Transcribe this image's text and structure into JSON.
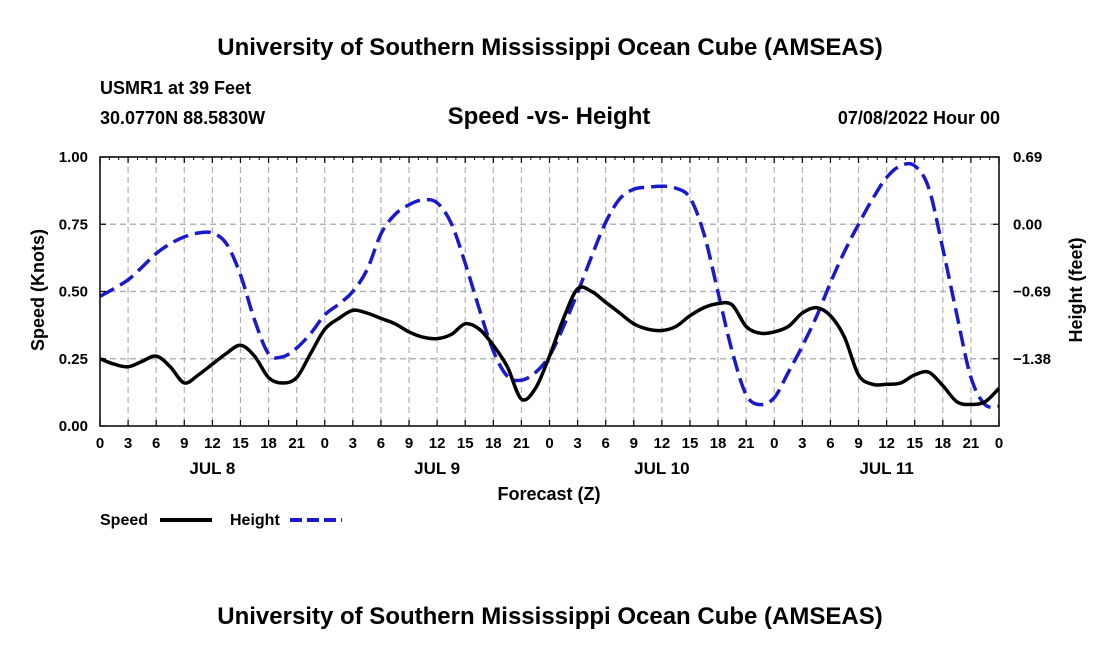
{
  "header": {
    "title": "University of Southern Mississippi Ocean Cube (AMSEAS)",
    "station": "USMR1 at 39 Feet",
    "coords": "30.0770N  88.5830W",
    "plot_title": "Speed -vs- Height",
    "datetime": "07/08/2022 Hour 00"
  },
  "footer": {
    "title": "University of Southern Mississippi Ocean Cube (AMSEAS)"
  },
  "colors": {
    "speed": "#000000",
    "height": "#1a1acc",
    "grid": "#b0b0b0"
  },
  "chart_data": {
    "type": "line",
    "title": "Speed -vs- Height",
    "xlabel": "Forecast (Z)",
    "ylabel": "Speed (Knots)",
    "y2label": "Height (feet)",
    "xlim": [
      0,
      96
    ],
    "ylim": [
      0,
      1
    ],
    "y_ticks": [
      0,
      0.25,
      0.5,
      0.75,
      1.0
    ],
    "y_tick_labels": [
      "0.00",
      "0.25",
      "0.50",
      "0.75",
      "1.00"
    ],
    "y2_ticks": [
      0.69,
      0.0,
      -0.69,
      -1.38
    ],
    "y2_tick_labels": [
      "0.69",
      "0.00",
      "−0.69",
      "−1.38"
    ],
    "y2lim": [
      -2.07,
      0.69
    ],
    "x_ticks": [
      0,
      3,
      6,
      9,
      12,
      15,
      18,
      21,
      24,
      27,
      30,
      33,
      36,
      39,
      42,
      45,
      48,
      51,
      54,
      57,
      60,
      63,
      66,
      69,
      72,
      75,
      78,
      81,
      84,
      87,
      90,
      93,
      96
    ],
    "x_tick_labels": [
      "0",
      "3",
      "6",
      "9",
      "12",
      "15",
      "18",
      "21",
      "0",
      "3",
      "6",
      "9",
      "12",
      "15",
      "18",
      "21",
      "0",
      "3",
      "6",
      "9",
      "12",
      "15",
      "18",
      "21",
      "0",
      "3",
      "6",
      "9",
      "12",
      "15",
      "18",
      "21",
      "0"
    ],
    "day_labels": [
      {
        "x": 12,
        "label": "JUL 8"
      },
      {
        "x": 36,
        "label": "JUL 9"
      },
      {
        "x": 60,
        "label": "JUL 10"
      },
      {
        "x": 84,
        "label": "JUL 11"
      }
    ],
    "grid": true,
    "legend": {
      "position": "bottom-left",
      "entries": [
        "Speed",
        "Height"
      ]
    },
    "series": [
      {
        "name": "Speed",
        "axis": "left",
        "style": "solid",
        "x": [
          0,
          1.5,
          3,
          4.5,
          6,
          7.5,
          9,
          10.5,
          12,
          13.5,
          15,
          16.5,
          18,
          19.5,
          21,
          22.5,
          24,
          25.5,
          27,
          28.5,
          30,
          31.5,
          33,
          34.5,
          36,
          37.5,
          39,
          40.5,
          42,
          43.5,
          45,
          46.5,
          48,
          49.5,
          51,
          52.5,
          54,
          55.5,
          57,
          58.5,
          60,
          61.5,
          63,
          64.5,
          66,
          67.5,
          69,
          70.5,
          72,
          73.5,
          75,
          76.5,
          78,
          79.5,
          81,
          82.5,
          84,
          85.5,
          87,
          88.5,
          90,
          91.5,
          93,
          94.5,
          96
        ],
        "values": [
          0.25,
          0.23,
          0.22,
          0.24,
          0.26,
          0.22,
          0.16,
          0.19,
          0.23,
          0.27,
          0.3,
          0.26,
          0.18,
          0.16,
          0.18,
          0.27,
          0.36,
          0.4,
          0.43,
          0.42,
          0.4,
          0.38,
          0.35,
          0.33,
          0.325,
          0.34,
          0.38,
          0.36,
          0.3,
          0.22,
          0.1,
          0.14,
          0.26,
          0.4,
          0.51,
          0.5,
          0.46,
          0.42,
          0.38,
          0.36,
          0.355,
          0.37,
          0.41,
          0.44,
          0.455,
          0.45,
          0.37,
          0.345,
          0.35,
          0.37,
          0.42,
          0.44,
          0.41,
          0.33,
          0.19,
          0.155,
          0.155,
          0.16,
          0.19,
          0.2,
          0.15,
          0.09,
          0.08,
          0.09,
          0.14
        ]
      },
      {
        "name": "Height",
        "axis": "right",
        "style": "dashed",
        "x": [
          0,
          1.5,
          3,
          4.5,
          6,
          7.5,
          9,
          10.5,
          12,
          13.5,
          15,
          16.5,
          18,
          19.5,
          21,
          22.5,
          24,
          25.5,
          27,
          28.5,
          30,
          31.5,
          33,
          34.5,
          36,
          37.5,
          39,
          40.5,
          42,
          43.5,
          45,
          46.5,
          48,
          49.5,
          51,
          52.5,
          54,
          55.5,
          57,
          58.5,
          60,
          61.5,
          63,
          64.5,
          66,
          67.5,
          69,
          70.5,
          72,
          73.5,
          75,
          76.5,
          78,
          79.5,
          81,
          82.5,
          84,
          85.5,
          87,
          88.5,
          90,
          91.5,
          93,
          94.5,
          96
        ],
        "values": [
          -0.74,
          -0.66,
          -0.57,
          -0.44,
          -0.3,
          -0.2,
          -0.13,
          -0.09,
          -0.09,
          -0.2,
          -0.52,
          -0.98,
          -1.33,
          -1.36,
          -1.27,
          -1.12,
          -0.93,
          -0.82,
          -0.69,
          -0.47,
          -0.1,
          0.1,
          0.2,
          0.25,
          0.22,
          0.01,
          -0.4,
          -0.87,
          -1.3,
          -1.56,
          -1.6,
          -1.52,
          -1.35,
          -1.05,
          -0.7,
          -0.33,
          0.02,
          0.26,
          0.36,
          0.38,
          0.39,
          0.37,
          0.27,
          -0.1,
          -0.7,
          -1.3,
          -1.75,
          -1.85,
          -1.78,
          -1.52,
          -1.25,
          -0.95,
          -0.6,
          -0.28,
          0.0,
          0.26,
          0.48,
          0.6,
          0.6,
          0.37,
          -0.25,
          -0.93,
          -1.57,
          -1.85,
          -1.87
        ]
      }
    ]
  }
}
